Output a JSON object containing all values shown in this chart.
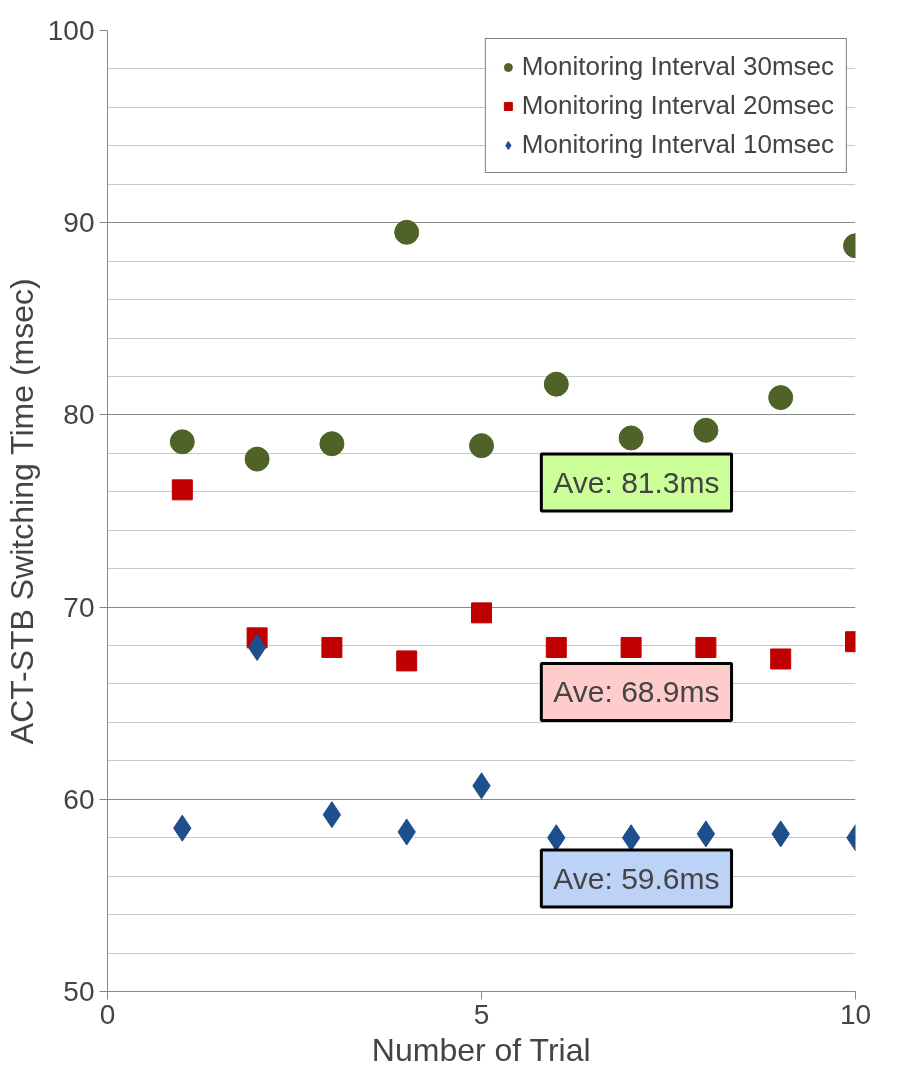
{
  "chart_data": {
    "type": "scatter",
    "xlabel": "Number of Trial",
    "ylabel": "ACT-STB Switching Time (msec)",
    "x": [
      1,
      2,
      3,
      4,
      5,
      6,
      7,
      8,
      9,
      10
    ],
    "series": [
      {
        "name": "Monitoring Interval 30msec",
        "color": "#4f6228",
        "marker": "circle",
        "values": [
          78.6,
          77.7,
          78.5,
          89.5,
          78.4,
          81.6,
          78.8,
          79.2,
          80.9,
          88.8
        ]
      },
      {
        "name": "Monitoring Interval 20msec",
        "color": "#c00000",
        "marker": "square",
        "values": [
          76.1,
          68.4,
          67.9,
          67.2,
          69.7,
          67.9,
          67.9,
          67.9,
          67.3,
          68.2
        ]
      },
      {
        "name": "Monitoring Interval 10msec",
        "color": "#1f4e8c",
        "marker": "diamond",
        "values": [
          58.5,
          67.9,
          59.2,
          58.3,
          60.7,
          58.0,
          58.0,
          58.2,
          58.2,
          58.0
        ]
      }
    ],
    "annotations": [
      "Ave: 81.3ms",
      "Ave: 68.9ms",
      "Ave: 59.6ms"
    ],
    "xlim": [
      0,
      10
    ],
    "ylim": [
      50,
      100
    ],
    "xticks": [
      0,
      5,
      10
    ],
    "yticks": [
      50,
      60,
      70,
      80,
      90,
      100
    ],
    "grid": "y",
    "legend": "top right"
  }
}
